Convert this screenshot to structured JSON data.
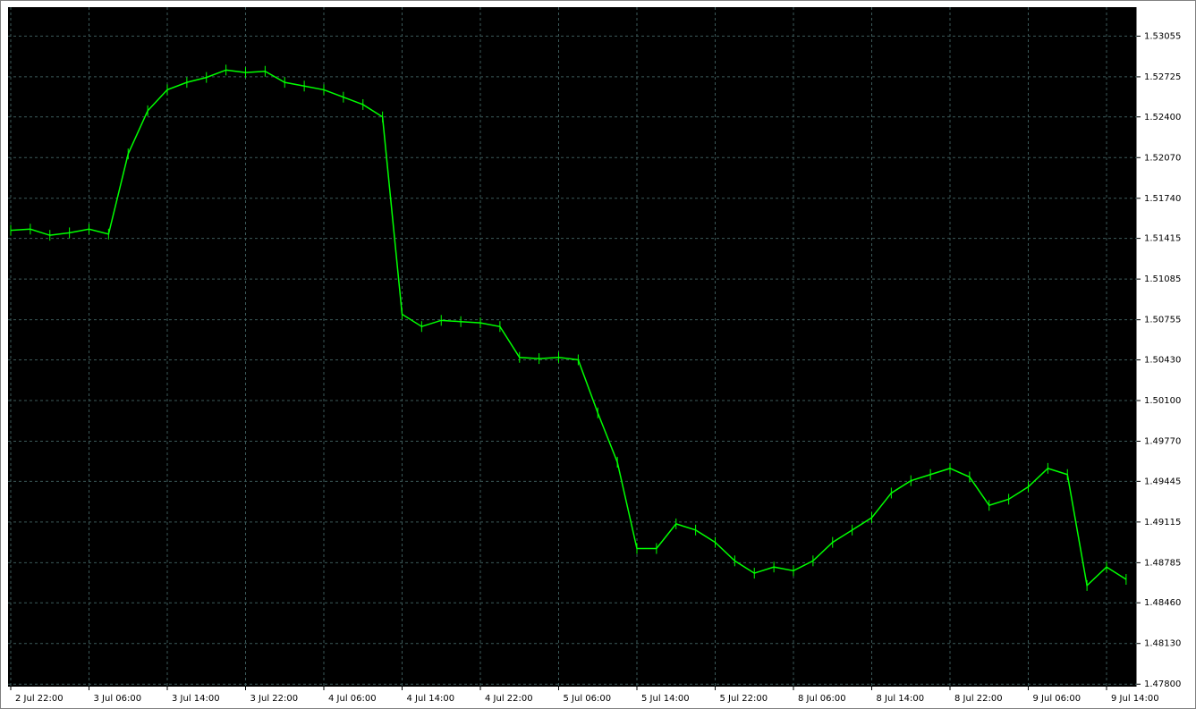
{
  "chart_data": {
    "type": "line",
    "categories": [
      "2 Jul 22:00",
      null,
      null,
      null,
      "3 Jul 06:00",
      null,
      null,
      null,
      "3 Jul 14:00",
      null,
      null,
      null,
      "3 Jul 22:00",
      null,
      null,
      null,
      "4 Jul 06:00",
      null,
      null,
      null,
      "4 Jul 14:00",
      null,
      null,
      null,
      "4 Jul 22:00",
      null,
      null,
      null,
      "5 Jul 06:00",
      null,
      null,
      null,
      "5 Jul 14:00",
      null,
      null,
      null,
      "5 Jul 22:00",
      null,
      null,
      null,
      "8 Jul 06:00",
      null,
      null,
      null,
      "8 Jul 14:00",
      null,
      null,
      null,
      "8 Jul 22:00",
      null,
      null,
      null,
      "9 Jul 06:00",
      null,
      null,
      null,
      "9 Jul 14:00",
      null
    ],
    "series": [
      {
        "color": "#00ff00",
        "values": [
          1.5148,
          1.5149,
          1.5144,
          1.5146,
          1.5149,
          1.5145,
          1.521,
          1.5245,
          1.5262,
          1.5268,
          1.5272,
          1.5278,
          1.5276,
          1.5277,
          1.5268,
          1.5265,
          1.5262,
          1.5256,
          1.525,
          1.524,
          1.508,
          1.507,
          1.5075,
          1.5074,
          1.5073,
          1.507,
          1.5045,
          1.5044,
          1.5045,
          1.5043,
          1.5,
          1.496,
          1.489,
          1.489,
          1.491,
          1.4905,
          1.4895,
          1.488,
          1.487,
          1.4875,
          1.4872,
          1.488,
          1.4895,
          1.4905,
          1.4915,
          1.4935,
          1.4945,
          1.495,
          1.4955,
          1.4948,
          1.4925,
          1.493,
          1.494,
          1.4955,
          1.495,
          1.486,
          1.4875,
          1.4865
        ]
      }
    ],
    "ylim": [
      1.4778,
      1.5329
    ],
    "yticks": [
      1.53055,
      1.52725,
      {
        "value": 1.524,
        "label": "1.52400"
      },
      {
        "value": 1.5207,
        "label": "1.52070"
      },
      {
        "value": 1.5174,
        "label": "1.51740"
      },
      1.51415,
      1.51085,
      1.50755,
      {
        "value": 1.5043,
        "label": "1.50430"
      },
      {
        "value": 1.501,
        "label": "1.50100"
      },
      {
        "value": 1.4977,
        "label": "1.49770"
      },
      1.49445,
      1.49115,
      1.48785,
      {
        "value": 1.4846,
        "label": "1.48460"
      },
      {
        "value": 1.4813,
        "label": "1.48130"
      },
      {
        "value": 1.478,
        "label": "1.47800"
      }
    ],
    "grid": true
  }
}
